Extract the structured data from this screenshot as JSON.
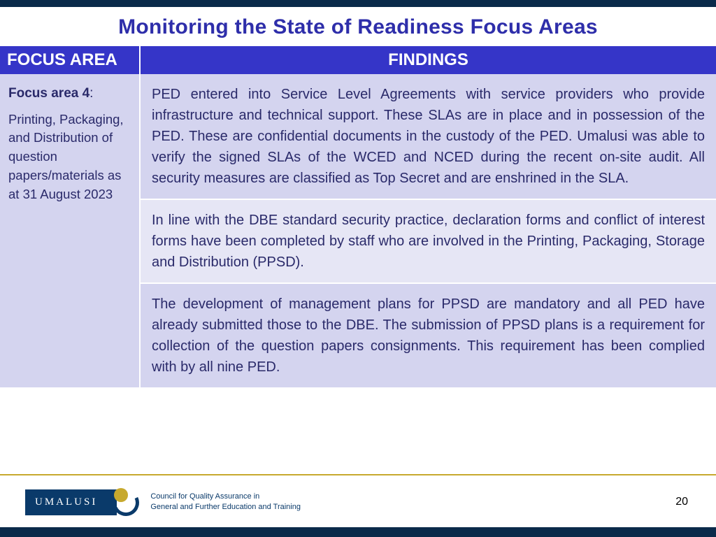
{
  "title": "Monitoring the State of Readiness Focus Areas",
  "table": {
    "headers": {
      "focus": "FOCUS AREA",
      "findings": "FINDINGS"
    },
    "focus": {
      "label": "Focus area 4",
      "desc": "Printing, Packaging, and Distribution of question papers/materials as at 31 August 2023"
    },
    "findings": [
      "PED entered into Service Level Agreements with service providers who provide infrastructure and technical support. These SLAs are in place and in possession of the PED. These are confidential documents in the custody of the PED. Umalusi was able to verify the signed SLAs of the WCED and NCED during the recent on-site audit. All security measures are classified as Top Secret and are enshrined in the SLA.",
      "In line with the DBE standard security practice, declaration forms and conflict of interest forms have been completed by staff who are involved in the Printing, Packaging, Storage and Distribution (PPSD).",
      "The development of management plans for PPSD are mandatory and all PED have already submitted those to the DBE. The submission of PPSD plans is a requirement for collection of the question papers consignments. This requirement has been complied with by all nine PED."
    ]
  },
  "footer": {
    "logo_text": "UMALUSI",
    "council_line1": "Council for Quality Assurance in",
    "council_line2": "General and Further Education and Training",
    "page": "20"
  },
  "colors": {
    "header_blue": "#3535c8",
    "dark_navy": "#0a2a4a",
    "title_blue": "#2e2eaa",
    "cell_text": "#2a2a6a",
    "shade_a": "#d4d4ef",
    "shade_b": "#e6e6f5",
    "gold": "#c7a92e",
    "logo_navy": "#0a3a6a"
  }
}
